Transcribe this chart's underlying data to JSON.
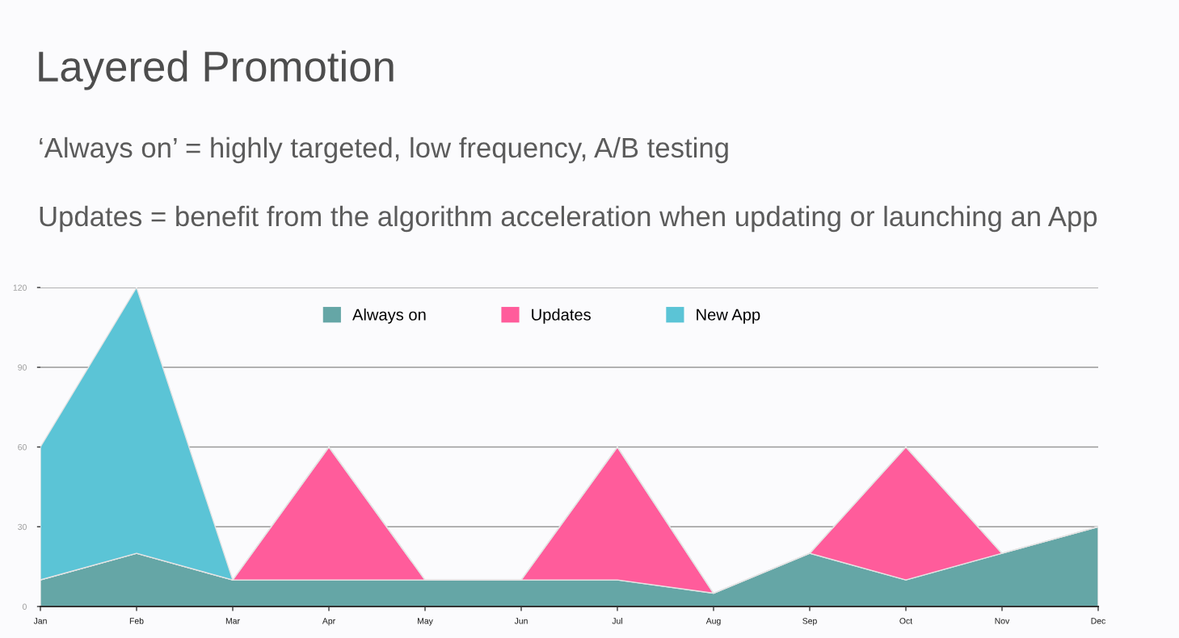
{
  "chart_data": {
    "type": "area",
    "title": "Layered Promotion",
    "subtitle": "‘Always on’ = highly targeted, low frequency, A/B testing",
    "annotations": [
      "Updates = benefit from the algorithm acceleration when updating or launching an App"
    ],
    "categories": [
      "Jan",
      "Feb",
      "Mar",
      "Apr",
      "May",
      "Jun",
      "Jul",
      "Aug",
      "Sep",
      "Oct",
      "Nov",
      "Dec"
    ],
    "stacked": true,
    "series": [
      {
        "name": "Always on",
        "color": "#65a6a6",
        "values": [
          10,
          20,
          10,
          10,
          10,
          10,
          10,
          5,
          20,
          10,
          20,
          30
        ]
      },
      {
        "name": "Updates",
        "color": "#ff5c9b",
        "values": [
          0,
          0,
          0,
          50,
          0,
          0,
          50,
          0,
          0,
          50,
          0,
          0
        ]
      },
      {
        "name": "New App",
        "color": "#5bc4d6",
        "values": [
          50,
          100,
          0,
          0,
          0,
          0,
          0,
          0,
          0,
          0,
          0,
          0
        ]
      }
    ],
    "ylim": [
      0,
      120
    ],
    "yticks": [
      0,
      30,
      60,
      90,
      120
    ],
    "grid": "y",
    "legend": "top"
  }
}
